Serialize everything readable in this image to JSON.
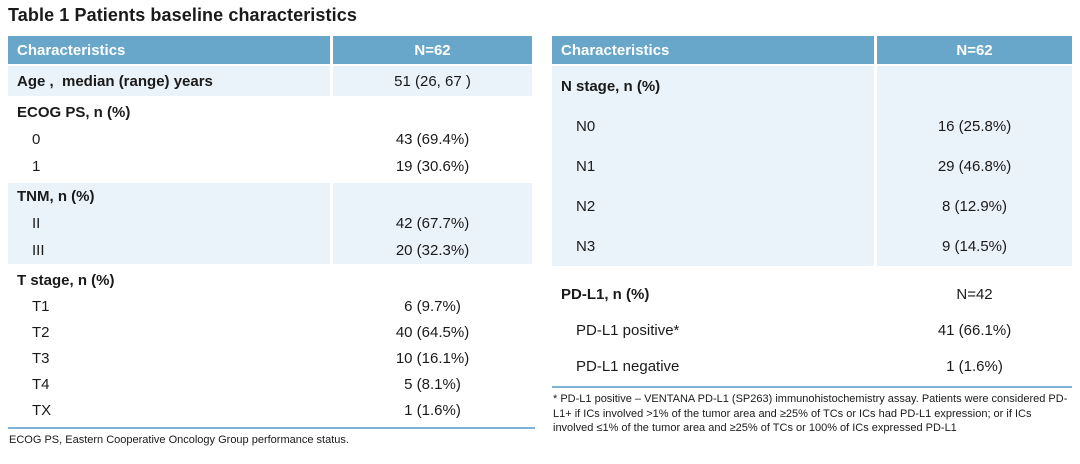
{
  "title": "Table 1 Patients baseline characteristics",
  "colors": {
    "header_bg": "#68A7C9",
    "band_light": "#EAF2FA",
    "rule_line": "#7FB0D5",
    "text": "#1A1A1A"
  },
  "left_table": {
    "header": {
      "characteristics": "Characteristics",
      "n": "N=62"
    },
    "groups": [
      {
        "bg": "light",
        "rows": [
          {
            "label": "Age ,  median (range) years",
            "value": "51 (26, 67 )",
            "bold": true,
            "indent": false
          }
        ]
      },
      {
        "bg": "white",
        "rows": [
          {
            "label": "ECOG PS, n (%)",
            "value": "",
            "bold": true,
            "indent": false
          },
          {
            "label": "0",
            "value": "43 (69.4%)",
            "bold": false,
            "indent": true
          },
          {
            "label": "1",
            "value": "19 (30.6%)",
            "bold": false,
            "indent": true
          }
        ]
      },
      {
        "bg": "light",
        "rows": [
          {
            "label": "TNM, n (%)",
            "value": "",
            "bold": true,
            "indent": false
          },
          {
            "label": "II",
            "value": "42 (67.7%)",
            "bold": false,
            "indent": true
          },
          {
            "label": "III",
            "value": "20 (32.3%)",
            "bold": false,
            "indent": true
          }
        ]
      },
      {
        "bg": "white",
        "rows": [
          {
            "label": "T stage, n (%)",
            "value": "",
            "bold": true,
            "indent": false
          },
          {
            "label": "T1",
            "value": "6 (9.7%)",
            "bold": false,
            "indent": true
          },
          {
            "label": "T2",
            "value": "40 (64.5%)",
            "bold": false,
            "indent": true
          },
          {
            "label": "T3",
            "value": "10 (16.1%)",
            "bold": false,
            "indent": true
          },
          {
            "label": "T4",
            "value": "5 (8.1%)",
            "bold": false,
            "indent": true
          },
          {
            "label": "TX",
            "value": "1 (1.6%)",
            "bold": false,
            "indent": true
          }
        ]
      }
    ],
    "footnote": "ECOG PS, Eastern Cooperative Oncology Group performance status."
  },
  "right_table": {
    "header": {
      "characteristics": "Characteristics",
      "n": "N=62"
    },
    "groups": [
      {
        "bg": "light",
        "rows": [
          {
            "label": "N stage, n (%)",
            "value": "",
            "bold": true,
            "indent": false
          },
          {
            "label": "N0",
            "value": "16 (25.8%)",
            "bold": false,
            "indent": true
          },
          {
            "label": "N1",
            "value": "29 (46.8%)",
            "bold": false,
            "indent": true
          },
          {
            "label": "N2",
            "value": "8 (12.9%)",
            "bold": false,
            "indent": true
          },
          {
            "label": "N3",
            "value": "9 (14.5%)",
            "bold": false,
            "indent": true
          }
        ]
      },
      {
        "bg": "white",
        "rows": [
          {
            "label": "PD-L1, n (%)",
            "value": "N=42",
            "bold": true,
            "indent": false
          },
          {
            "label": "PD-L1 positive*",
            "value": "41 (66.1%)",
            "bold": false,
            "indent": true
          },
          {
            "label": "PD-L1 negative",
            "value": "1 (1.6%)",
            "bold": false,
            "indent": true
          }
        ]
      }
    ],
    "footnote": "* PD-L1 positive  – VENTANA PD-L1 (SP263) immunohistochemistry assay. Patients were considered PD-L1+ if ICs involved >1% of the tumor area and ≥25% of TCs or ICs had PD-L1 expression; or if ICs involved ≤1% of the tumor area and ≥25% of TCs or 100% of ICs expressed PD-L1"
  }
}
